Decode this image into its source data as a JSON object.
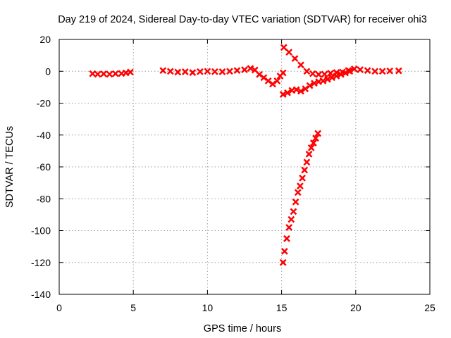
{
  "chart_data": {
    "type": "scatter",
    "title": "Day 219 of 2024, Sidereal Day-to-day VTEC variation (SDTVAR) for receiver ohi3",
    "xlabel": "GPS time / hours",
    "ylabel": "SDTVAR / TECUs",
    "xlim": [
      0,
      25
    ],
    "ylim": [
      -140,
      20
    ],
    "xticks": [
      0,
      5,
      10,
      15,
      20,
      25
    ],
    "yticks": [
      -140,
      -120,
      -100,
      -80,
      -60,
      -40,
      -20,
      0,
      20
    ],
    "grid": true,
    "series_color": "#ff0000",
    "series": [
      {
        "values": [
          [
            2.25,
            -1.5
          ],
          [
            2.6,
            -1.8
          ],
          [
            3.0,
            -1.6
          ],
          [
            3.4,
            -1.8
          ],
          [
            3.8,
            -1.5
          ],
          [
            4.2,
            -1.4
          ],
          [
            4.5,
            -1.0
          ],
          [
            4.8,
            -0.5
          ],
          [
            7.0,
            0.5
          ],
          [
            7.5,
            0.0
          ],
          [
            8.0,
            -0.5
          ],
          [
            8.5,
            -0.3
          ],
          [
            9.0,
            -0.8
          ],
          [
            9.5,
            -0.2
          ],
          [
            10.0,
            0.0
          ],
          [
            10.5,
            -0.2
          ],
          [
            11.0,
            -0.3
          ],
          [
            11.5,
            0.0
          ],
          [
            12.0,
            0.5
          ],
          [
            12.5,
            1.0
          ],
          [
            12.9,
            1.8
          ],
          [
            13.2,
            0.8
          ],
          [
            13.5,
            -2.0
          ],
          [
            13.8,
            -4.0
          ],
          [
            14.1,
            -6.0
          ],
          [
            14.4,
            -8.0
          ],
          [
            14.7,
            -6.0
          ],
          [
            14.9,
            -3.0
          ],
          [
            15.1,
            -1.0
          ],
          [
            15.15,
            15.0
          ],
          [
            15.5,
            12.0
          ],
          [
            15.9,
            8.0
          ],
          [
            16.3,
            4.0
          ],
          [
            16.7,
            0.0
          ],
          [
            17.1,
            -1.5
          ],
          [
            17.5,
            -2.0
          ],
          [
            17.9,
            -1.8
          ],
          [
            18.3,
            -1.2
          ],
          [
            18.7,
            -0.8
          ],
          [
            19.1,
            -0.5
          ],
          [
            19.5,
            0.5
          ],
          [
            19.9,
            1.5
          ],
          [
            20.3,
            1.0
          ],
          [
            20.8,
            0.5
          ],
          [
            21.3,
            0.0
          ],
          [
            21.8,
            0.0
          ],
          [
            22.3,
            0.2
          ],
          [
            22.9,
            0.3
          ],
          [
            15.1,
            -14.5
          ],
          [
            15.4,
            -13.5
          ],
          [
            15.7,
            -12.0
          ],
          [
            16.0,
            -11.5
          ],
          [
            16.3,
            -12.5
          ],
          [
            16.6,
            -11.0
          ],
          [
            16.9,
            -9.0
          ],
          [
            17.2,
            -7.5
          ],
          [
            17.5,
            -6.5
          ],
          [
            17.8,
            -6.0
          ],
          [
            18.1,
            -5.0
          ],
          [
            18.4,
            -4.0
          ],
          [
            18.7,
            -3.0
          ],
          [
            19.0,
            -2.0
          ],
          [
            19.3,
            -1.0
          ],
          [
            19.6,
            0.0
          ],
          [
            15.1,
            -120.0
          ],
          [
            15.2,
            -113.0
          ],
          [
            15.35,
            -105.0
          ],
          [
            15.5,
            -98.0
          ],
          [
            15.65,
            -93.0
          ],
          [
            15.8,
            -88.0
          ],
          [
            15.95,
            -82.0
          ],
          [
            16.1,
            -76.0
          ],
          [
            16.25,
            -72.0
          ],
          [
            16.4,
            -67.0
          ],
          [
            16.55,
            -62.0
          ],
          [
            16.7,
            -57.0
          ],
          [
            16.85,
            -52.0
          ],
          [
            17.0,
            -48.0
          ],
          [
            17.15,
            -45.0
          ],
          [
            17.3,
            -42.0
          ],
          [
            17.45,
            -39.0
          ]
        ]
      }
    ]
  }
}
